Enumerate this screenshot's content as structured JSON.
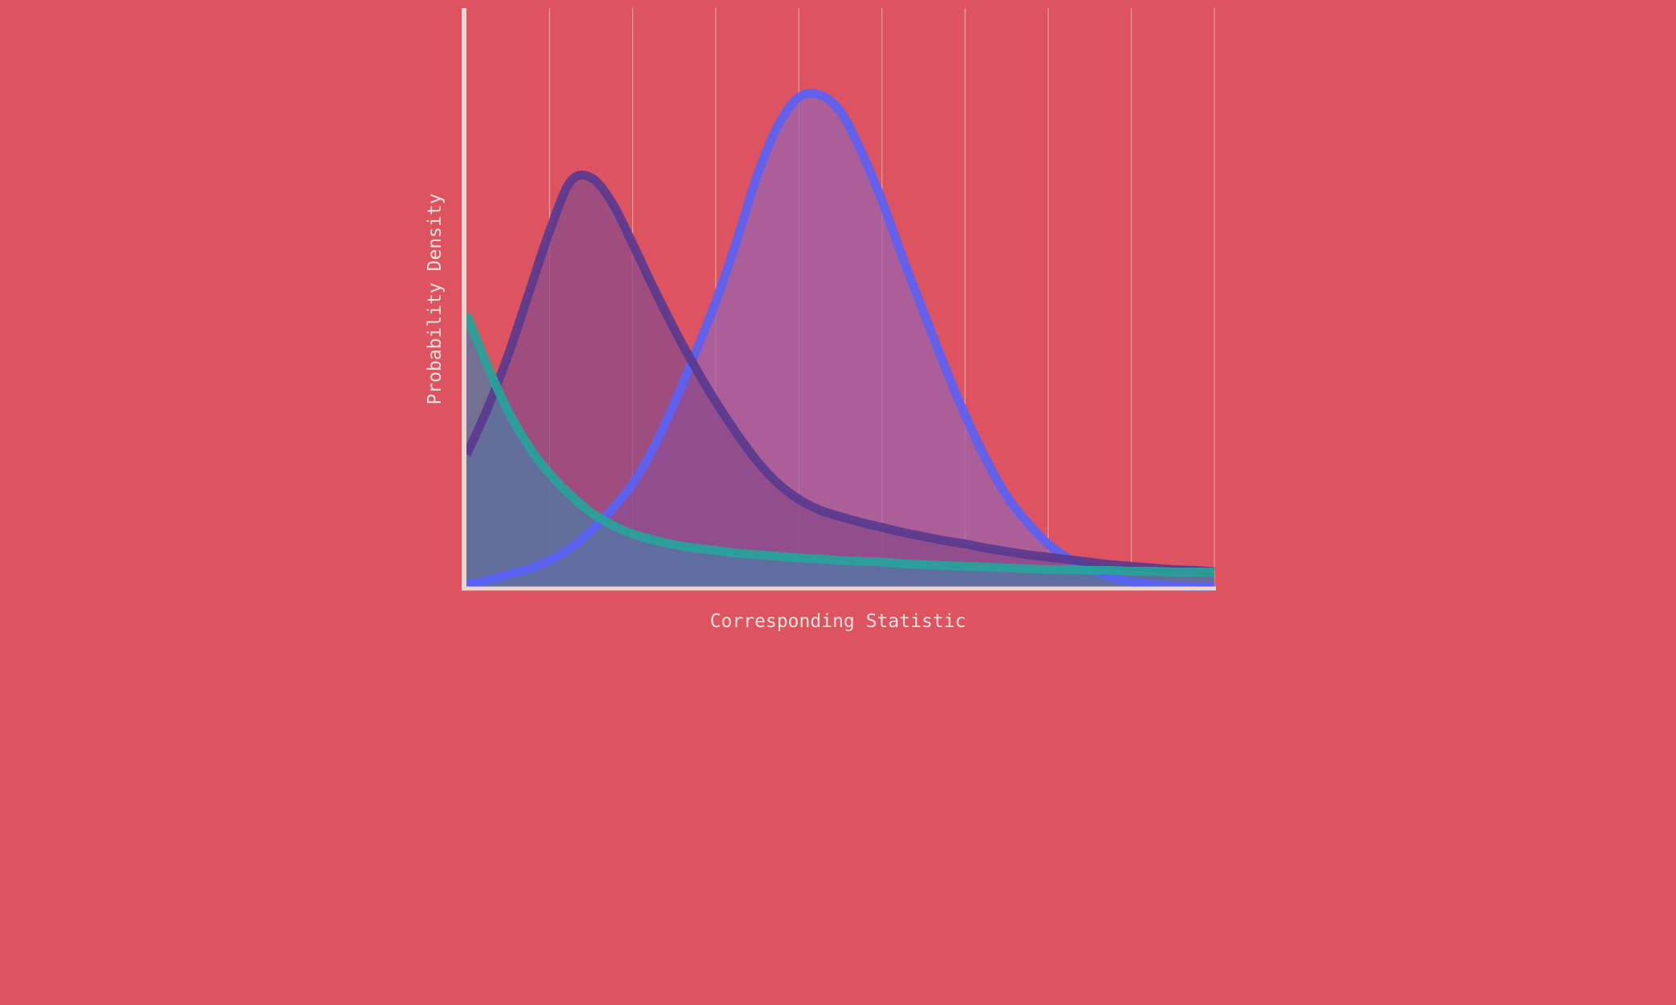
{
  "chart_data": {
    "type": "area",
    "title": "",
    "xlabel": "Corresponding Statistic",
    "ylabel": "Probability Density",
    "xlim": [
      0,
      9
    ],
    "ylim": [
      0,
      0.7
    ],
    "grid": "vertical",
    "x_gridlines": [
      1,
      2,
      3,
      4,
      5,
      6,
      7,
      8,
      9
    ],
    "x": [
      0,
      0.25,
      0.5,
      0.75,
      1,
      1.25,
      1.5,
      1.75,
      2,
      2.25,
      2.5,
      2.75,
      3,
      3.25,
      3.5,
      3.75,
      4,
      4.25,
      4.5,
      4.75,
      5,
      5.25,
      5.5,
      5.75,
      6,
      6.25,
      6.5,
      6.75,
      7,
      7.25,
      7.5,
      7.75,
      8,
      8.25,
      8.5,
      8.75,
      9
    ],
    "series": [
      {
        "color": "#5a62f5",
        "fill": "#9b62ab",
        "values": [
          0.003,
          0.008,
          0.015,
          0.022,
          0.032,
          0.047,
          0.068,
          0.094,
          0.125,
          0.168,
          0.222,
          0.282,
          0.345,
          0.418,
          0.498,
          0.558,
          0.592,
          0.595,
          0.575,
          0.527,
          0.467,
          0.398,
          0.333,
          0.268,
          0.208,
          0.155,
          0.11,
          0.078,
          0.052,
          0.034,
          0.021,
          0.012,
          0.006,
          0.003,
          0.001,
          0.0005,
          0.0002
        ]
      },
      {
        "color": "#5a3a8e",
        "fill": "#8a4a88",
        "values": [
          0.16,
          0.215,
          0.28,
          0.355,
          0.43,
          0.49,
          0.495,
          0.465,
          0.415,
          0.362,
          0.312,
          0.266,
          0.224,
          0.186,
          0.152,
          0.125,
          0.106,
          0.093,
          0.085,
          0.078,
          0.072,
          0.066,
          0.061,
          0.056,
          0.052,
          0.047,
          0.043,
          0.039,
          0.036,
          0.033,
          0.03,
          0.027,
          0.025,
          0.023,
          0.021,
          0.02,
          0.0185
        ]
      },
      {
        "color": "#26a39a",
        "fill": "#4f7aa5",
        "values": [
          0.33,
          0.268,
          0.213,
          0.17,
          0.137,
          0.111,
          0.09,
          0.075,
          0.064,
          0.057,
          0.051,
          0.047,
          0.044,
          0.041,
          0.039,
          0.037,
          0.035,
          0.034,
          0.032,
          0.031,
          0.03,
          0.028,
          0.027,
          0.026,
          0.025,
          0.024,
          0.023,
          0.022,
          0.021,
          0.021,
          0.02,
          0.02,
          0.019,
          0.019,
          0.018,
          0.018,
          0.018
        ]
      }
    ]
  },
  "style": {
    "background": "#dd5360",
    "axis_color": "#efd5cf",
    "grid_color": "#f2c6c4"
  }
}
